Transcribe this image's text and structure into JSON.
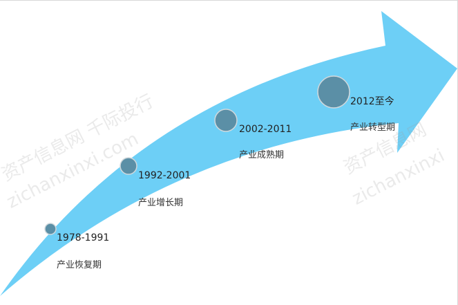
{
  "colors": {
    "arrow": "#6dcff6",
    "marker": "#5b8fa6",
    "marker_border": "#d0d8dc"
  },
  "stages": [
    {
      "period": "1978-1991",
      "name": "产业恢复期"
    },
    {
      "period": "1992-2001",
      "name": "产业增长期"
    },
    {
      "period": "2002-2011",
      "name": "产业成熟期"
    },
    {
      "period": "2012至今",
      "name": "产业转型期"
    }
  ],
  "watermark": {
    "line1": "资产信息网 千际投行",
    "line2": "zichanxinxi.com",
    "line3": "资产信息网",
    "line4": "zichanxinxi"
  }
}
